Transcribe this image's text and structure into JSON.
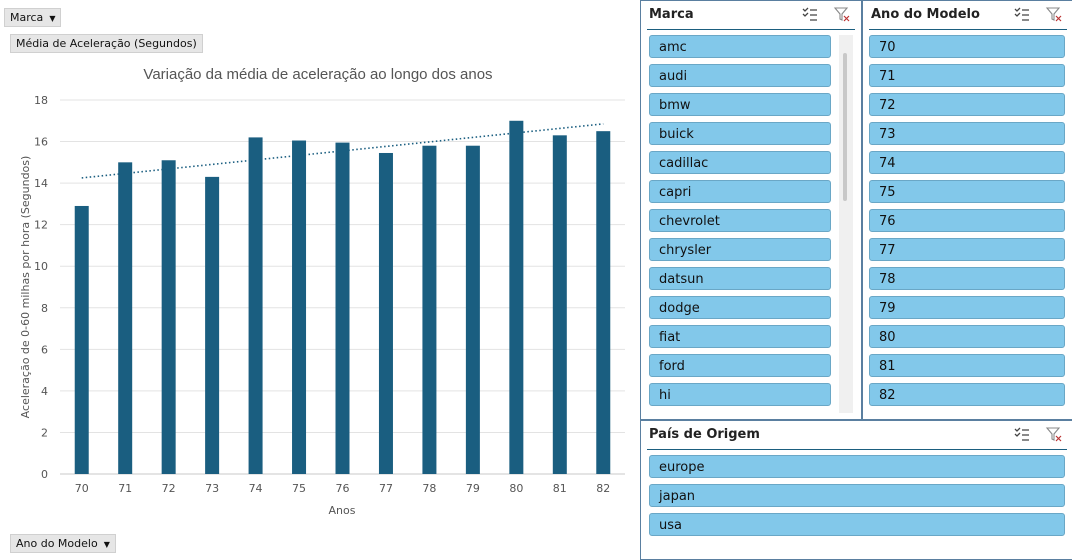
{
  "filters": {
    "marca_button": "Marca",
    "value_button": "Média de Aceleração (Segundos)",
    "ano_button": "Ano do Modelo"
  },
  "chart_data": {
    "type": "bar",
    "title": "Variação da média de aceleração ao longo dos anos",
    "xlabel": "Anos",
    "ylabel": "Aceleração de 0-60 milhas por hora  (Segundos)",
    "categories": [
      "70",
      "71",
      "72",
      "73",
      "74",
      "75",
      "76",
      "77",
      "78",
      "79",
      "80",
      "81",
      "82"
    ],
    "values": [
      12.9,
      15.0,
      15.1,
      14.3,
      16.2,
      16.05,
      15.95,
      15.45,
      15.8,
      15.8,
      17.0,
      16.3,
      16.5
    ],
    "yticks": [
      "0",
      "2",
      "4",
      "6",
      "8",
      "10",
      "12",
      "14",
      "16",
      "18"
    ],
    "ylim": [
      0,
      18
    ],
    "trendline": {
      "type": "linear",
      "start": 14.25,
      "end": 16.85,
      "style": "dotted"
    },
    "grid": true,
    "colors": {
      "bar": "#1a5e80",
      "trend": "#1a5e80",
      "grid": "#e3e3e3"
    }
  },
  "slicers": {
    "marca": {
      "title": "Marca",
      "items": [
        "amc",
        "audi",
        "bmw",
        "buick",
        "cadillac",
        "capri",
        "chevrolet",
        "chrysler",
        "datsun",
        "dodge",
        "fiat",
        "ford",
        "hi"
      ]
    },
    "ano": {
      "title": "Ano do Modelo",
      "items": [
        "70",
        "71",
        "72",
        "73",
        "74",
        "75",
        "76",
        "77",
        "78",
        "79",
        "80",
        "81",
        "82"
      ]
    },
    "pais": {
      "title": "País de Origem",
      "items": [
        "europe",
        "japan",
        "usa"
      ]
    }
  },
  "colors": {
    "item_fill": "#82c8ea",
    "item_border": "#6aa7c6",
    "slicer_border": "#5a7fa0",
    "header_line": "#1b5e7f"
  }
}
